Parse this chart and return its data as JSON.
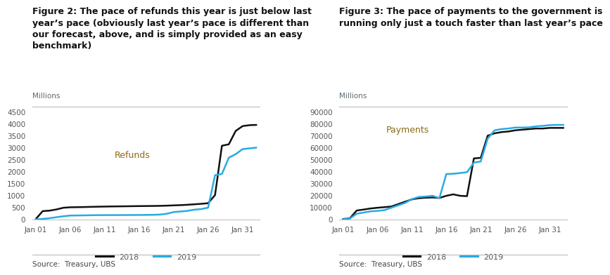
{
  "fig2_title": "Figure 2: The pace of refunds this year is just below last\nyear’s pace (obviously last year’s pace is different than\nour forecast, above, and is simply provided as an easy\nbenchmark)",
  "fig3_title": "Figure 3: The pace of payments to the government is\nrunning only just a touch faster than last year’s pace",
  "source_text": "Source:  Treasury, UBS",
  "ylabel_text": "Millions",
  "label_2018": "2018",
  "label_2019": "2019",
  "color_2018": "#111111",
  "color_2019": "#29ABE2",
  "line_width": 1.8,
  "refunds_label": "Refunds",
  "payments_label": "Payments",
  "xtick_labels": [
    "Jan 01",
    "Jan 06",
    "Jan 11",
    "Jan 16",
    "Jan 21",
    "Jan 26",
    "Jan 31"
  ],
  "xtick_positions": [
    1,
    6,
    11,
    16,
    21,
    26,
    31
  ],
  "refunds_2018_x": [
    1,
    2,
    3,
    4,
    5,
    6,
    7,
    8,
    9,
    10,
    11,
    12,
    13,
    14,
    15,
    16,
    17,
    18,
    19,
    20,
    21,
    22,
    23,
    24,
    25,
    26,
    27,
    28,
    29,
    30,
    31,
    32,
    33
  ],
  "refunds_2018_y": [
    20,
    350,
    370,
    420,
    490,
    510,
    515,
    520,
    528,
    535,
    540,
    545,
    548,
    552,
    556,
    560,
    562,
    565,
    570,
    578,
    590,
    600,
    615,
    635,
    655,
    680,
    1020,
    3080,
    3140,
    3700,
    3900,
    3940,
    3950
  ],
  "refunds_2019_x": [
    1,
    2,
    3,
    4,
    5,
    6,
    7,
    8,
    9,
    10,
    11,
    12,
    13,
    14,
    15,
    16,
    17,
    18,
    19,
    20,
    21,
    22,
    23,
    24,
    25,
    26,
    27,
    28,
    29,
    30,
    31,
    32,
    33
  ],
  "refunds_2019_y": [
    5,
    25,
    55,
    95,
    135,
    165,
    168,
    172,
    178,
    182,
    183,
    184,
    185,
    186,
    188,
    190,
    192,
    196,
    205,
    240,
    310,
    335,
    360,
    410,
    435,
    495,
    1850,
    1900,
    2580,
    2730,
    2940,
    2970,
    3000
  ],
  "payments_2018_x": [
    1,
    2,
    3,
    4,
    5,
    6,
    7,
    8,
    9,
    10,
    11,
    12,
    13,
    14,
    15,
    16,
    17,
    18,
    19,
    20,
    21,
    22,
    23,
    24,
    25,
    26,
    27,
    28,
    29,
    30,
    31,
    32,
    33
  ],
  "payments_2018_y": [
    400,
    900,
    7500,
    8300,
    9200,
    9800,
    10300,
    10800,
    12800,
    14800,
    16800,
    17800,
    18200,
    18400,
    18000,
    19800,
    21000,
    19800,
    19500,
    51000,
    51500,
    70000,
    72000,
    73000,
    73500,
    74500,
    75000,
    75500,
    76000,
    76000,
    76500,
    76500,
    76500
  ],
  "payments_2019_x": [
    1,
    2,
    3,
    4,
    5,
    6,
    7,
    8,
    9,
    10,
    11,
    12,
    13,
    14,
    15,
    16,
    17,
    18,
    19,
    20,
    21,
    22,
    23,
    24,
    25,
    26,
    27,
    28,
    29,
    30,
    31,
    32,
    33
  ],
  "payments_2019_y": [
    150,
    700,
    4800,
    5800,
    6800,
    7200,
    7800,
    9800,
    11800,
    13800,
    17000,
    18800,
    19200,
    19800,
    17800,
    38000,
    38200,
    38800,
    39500,
    47500,
    48500,
    67500,
    74500,
    75500,
    76000,
    76800,
    76800,
    77000,
    77800,
    78200,
    78800,
    79000,
    79000
  ],
  "refunds_ylim": [
    0,
    4500
  ],
  "refunds_yticks": [
    0,
    500,
    1000,
    1500,
    2000,
    2500,
    3000,
    3500,
    4000,
    4500
  ],
  "payments_ylim": [
    0,
    90000
  ],
  "payments_yticks": [
    0,
    10000,
    20000,
    30000,
    40000,
    50000,
    60000,
    70000,
    80000,
    90000
  ],
  "bg_color": "#ffffff",
  "title_fontsize": 9.0,
  "axis_fontsize": 7.5,
  "label_fontsize": 8.0,
  "annotation_fontsize": 9.0,
  "annotation_color": "#8B6914",
  "millions_color": "#5B6870",
  "separator_color": "#bbbbbb",
  "tick_color": "#555555",
  "source_fontsize": 7.5
}
